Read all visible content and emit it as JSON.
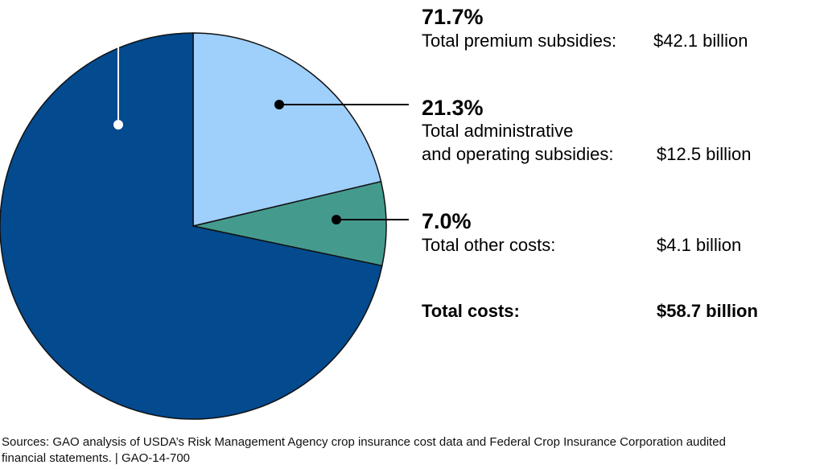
{
  "chart_data": {
    "type": "pie",
    "slices": [
      {
        "percent": 71.7,
        "label_lines": [
          "Total premium subsidies:"
        ],
        "amount": "$42.1 billion",
        "percent_label": "71.7%",
        "color": "#034A8F"
      },
      {
        "percent": 21.3,
        "label_lines": [
          "Total administrative",
          "and operating subsidies:"
        ],
        "amount": "$12.5 billion",
        "percent_label": "21.3%",
        "color": "#9FCFFB"
      },
      {
        "percent": 7.0,
        "label_lines": [
          "Total other costs:"
        ],
        "amount": "$4.1 billion",
        "percent_label": "7.0%",
        "color": "#459A8E"
      }
    ],
    "total": {
      "label": "Total costs:",
      "amount": "$58.7 billion"
    },
    "source_lines": [
      "Sources: GAO analysis of USDA’s Risk Management Agency crop insurance cost data and Federal Crop Insurance Corporation audited",
      "financial statements.  |  GAO-14-700"
    ]
  }
}
